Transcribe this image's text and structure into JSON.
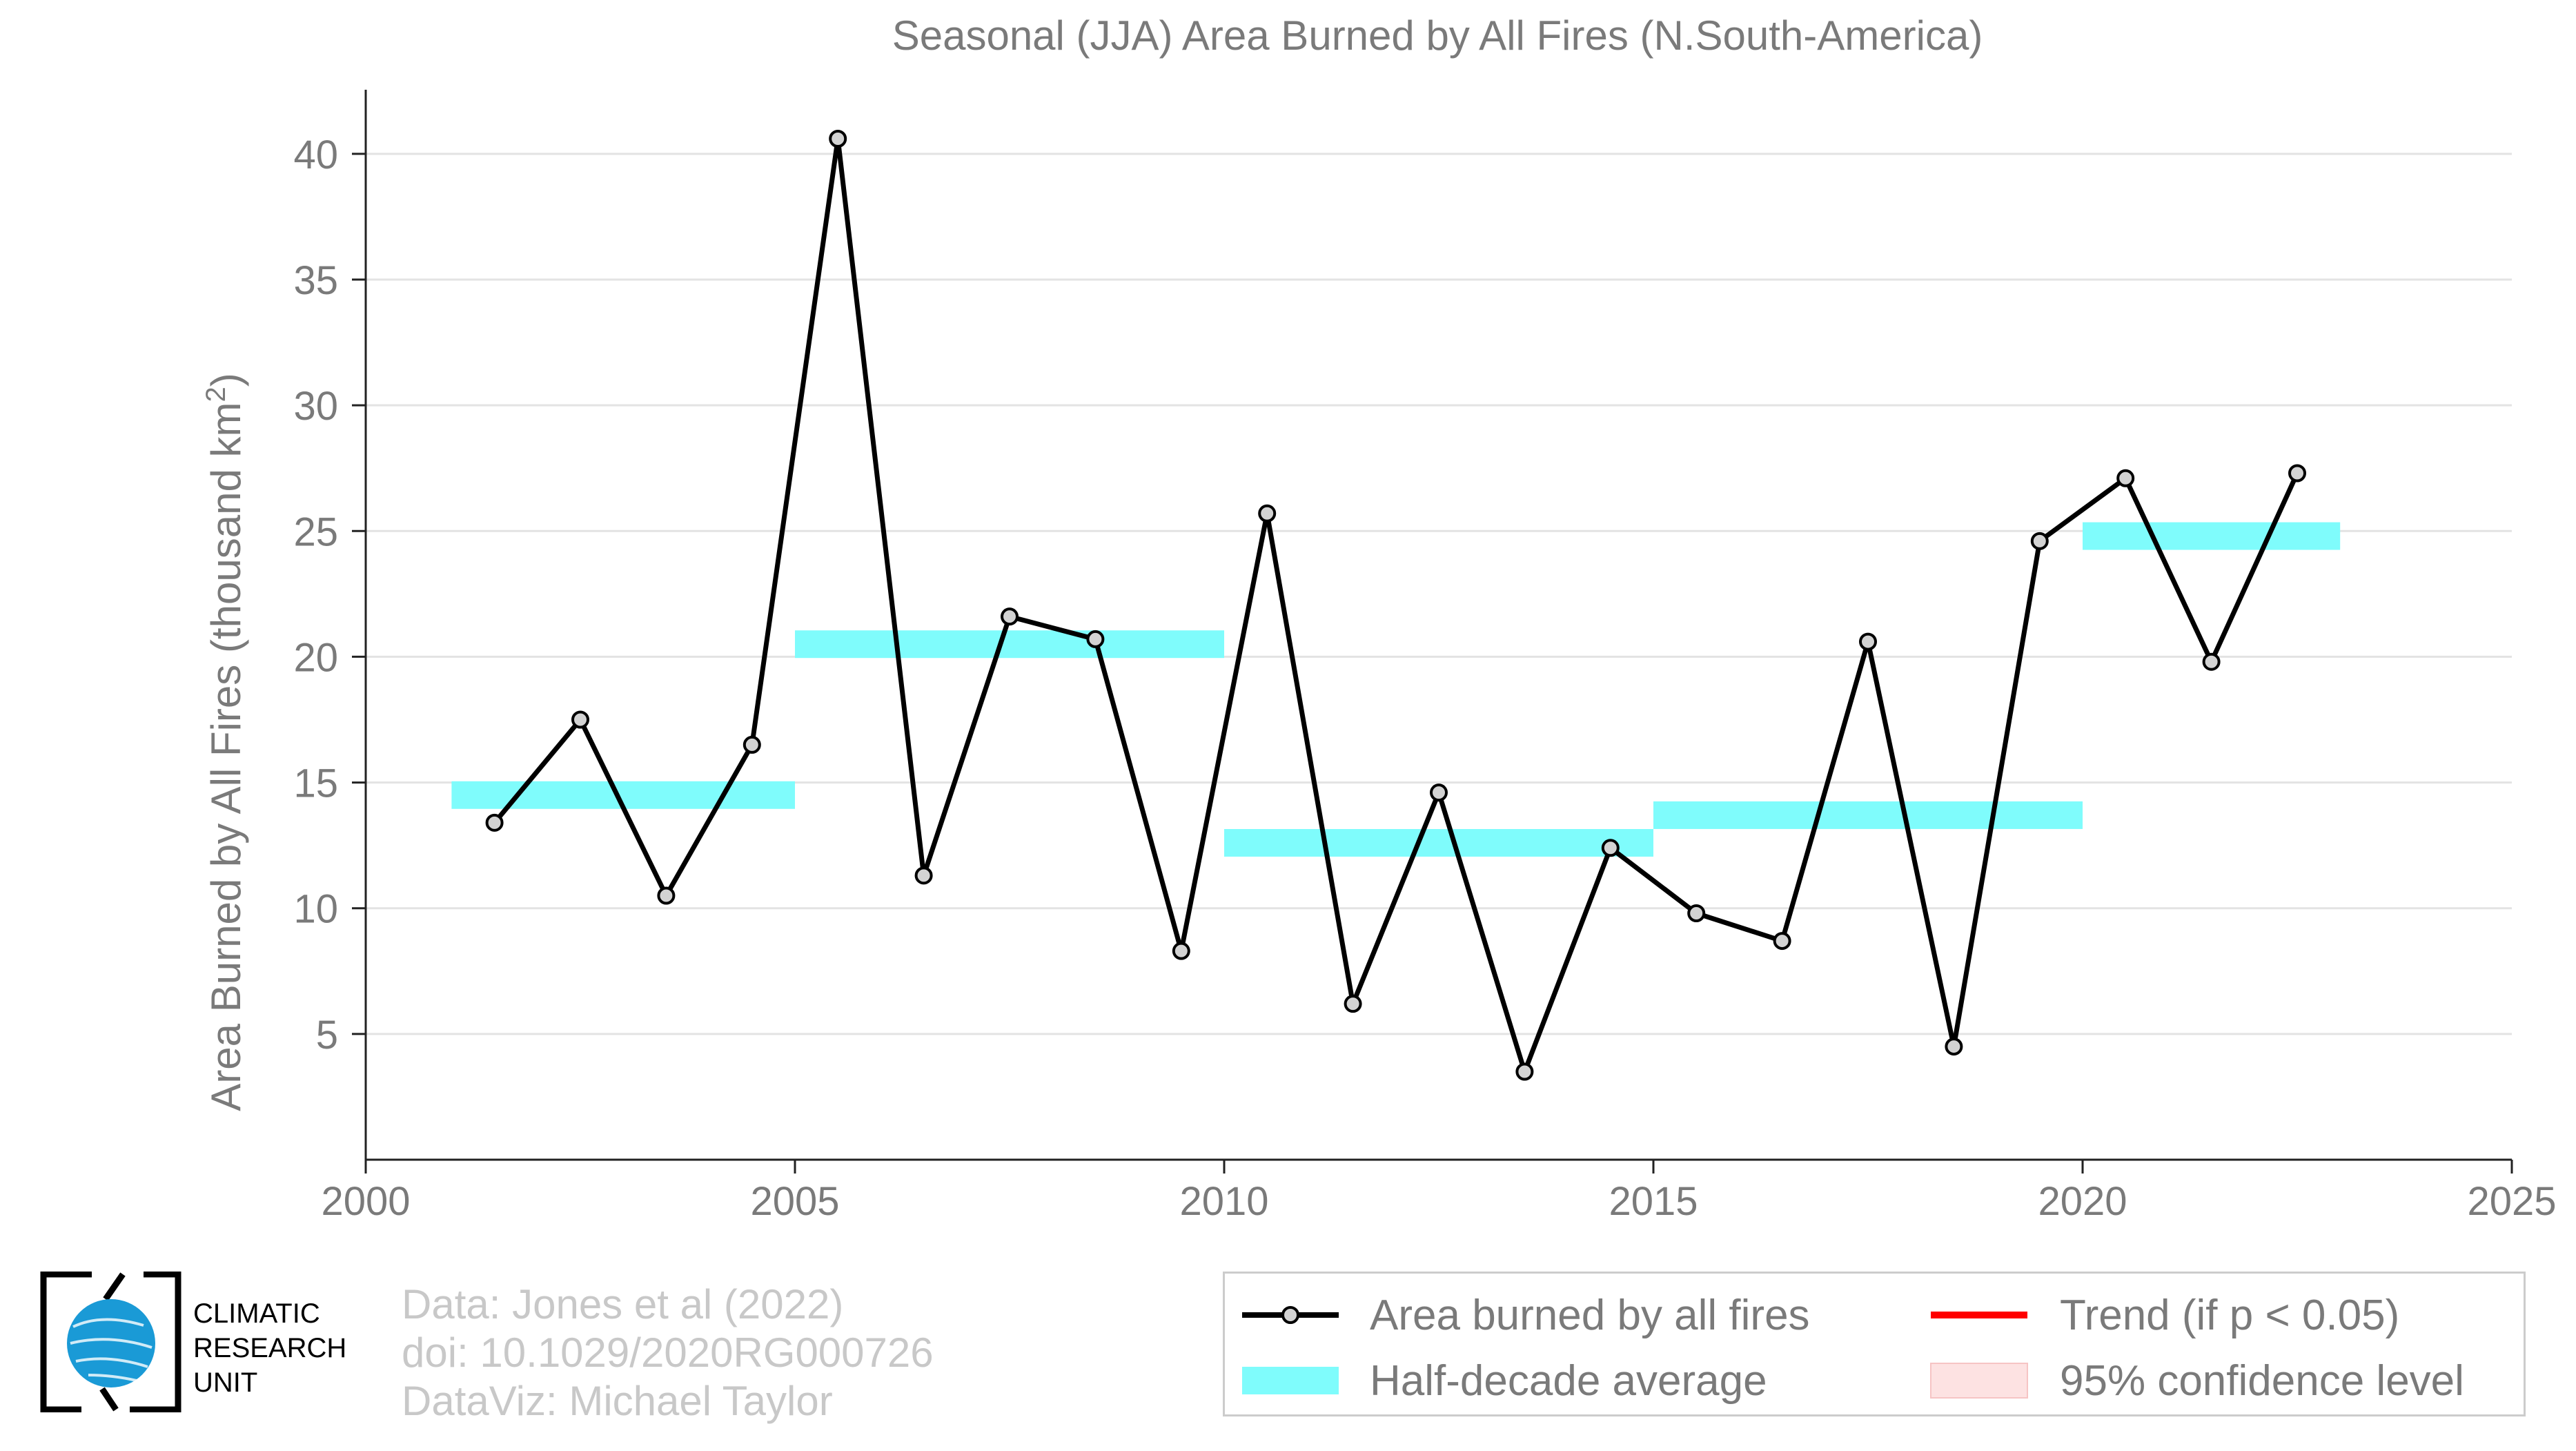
{
  "chart_data": {
    "type": "line",
    "title": "Seasonal (JJA) Area Burned by All Fires (N.South-America)",
    "ylabel": "Area Burned by All Fires (thousand km",
    "ylabel_sup": "2",
    "ylabel_end": ")",
    "xlabel": "",
    "xlim": [
      2000,
      2025
    ],
    "ylim": [
      0,
      42
    ],
    "xticks": [
      2000,
      2005,
      2010,
      2015,
      2020,
      2025
    ],
    "yticks": [
      5,
      10,
      15,
      20,
      25,
      30,
      35,
      40
    ],
    "grid": true,
    "series": [
      {
        "name": "Area burned by all fires",
        "color": "#000000",
        "marker_fill": "#d3d3d3",
        "x": [
          2001.5,
          2002.5,
          2003.5,
          2004.5,
          2005.5,
          2006.5,
          2007.5,
          2008.5,
          2009.5,
          2010.5,
          2011.5,
          2012.5,
          2013.5,
          2014.5,
          2015.5,
          2016.5,
          2017.5,
          2018.5,
          2019.5,
          2020.5,
          2021.5,
          2022.5
        ],
        "values": [
          13.4,
          17.5,
          10.5,
          16.5,
          40.6,
          11.3,
          21.6,
          20.7,
          8.3,
          25.7,
          6.2,
          14.6,
          3.5,
          12.4,
          9.8,
          8.7,
          20.6,
          4.5,
          24.6,
          27.1,
          19.8,
          27.3
        ]
      }
    ],
    "half_decade_averages": {
      "name": "Half-decade average",
      "color": "#7ffcfc",
      "segments": [
        {
          "x0": 2001,
          "x1": 2005,
          "value": 14.5
        },
        {
          "x0": 2005,
          "x1": 2010,
          "value": 20.5
        },
        {
          "x0": 2010,
          "x1": 2015,
          "value": 12.6
        },
        {
          "x0": 2015,
          "x1": 2020,
          "value": 13.7
        },
        {
          "x0": 2020,
          "x1": 2023,
          "value": 24.8
        }
      ]
    },
    "legend": {
      "placement": "bottom-right",
      "entries": [
        {
          "label": "Area burned by all fires",
          "kind": "line-marker",
          "color": "#000000"
        },
        {
          "label": "Trend (if p < 0.05)",
          "kind": "line",
          "color": "#ff0000"
        },
        {
          "label": "Half-decade average",
          "kind": "band",
          "color": "#7ffcfc"
        },
        {
          "label": "95% confidence level",
          "kind": "patch",
          "color": "#fde2e2"
        }
      ]
    }
  },
  "credits": {
    "data": "Data: Jones et al (2022)",
    "doi": "doi: 10.1029/2020RG000726",
    "dataviz": "DataViz: Michael Taylor"
  },
  "logo": {
    "line1": "CLIMATIC",
    "line2": "RESEARCH",
    "line3": "UNIT",
    "color": "#1a9ad6"
  }
}
